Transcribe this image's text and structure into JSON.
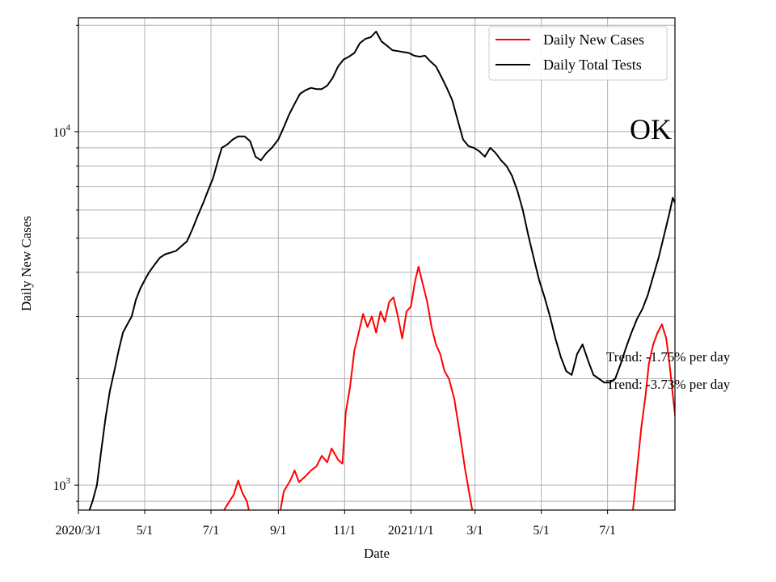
{
  "chart_data": {
    "type": "line",
    "title": "",
    "xlabel": "Date",
    "ylabel": "Daily New Cases",
    "x_scale": "time",
    "y_scale": "log",
    "xlim": [
      "2020-03-01",
      "2021-09-01"
    ],
    "ylim": [
      850,
      21000
    ],
    "grid": true,
    "legend_position": "top-right",
    "x_ticks": [
      {
        "date": "2020-03-01",
        "label": "2020/3/1"
      },
      {
        "date": "2020-05-01",
        "label": "5/1"
      },
      {
        "date": "2020-07-01",
        "label": "7/1"
      },
      {
        "date": "2020-09-01",
        "label": "9/1"
      },
      {
        "date": "2020-11-01",
        "label": "11/1"
      },
      {
        "date": "2021-01-01",
        "label": "2021/1/1"
      },
      {
        "date": "2021-03-01",
        "label": "3/1"
      },
      {
        "date": "2021-05-01",
        "label": "5/1"
      },
      {
        "date": "2021-07-01",
        "label": "7/1"
      }
    ],
    "y_ticks": [
      {
        "value": 1000,
        "label_base": "10",
        "label_exp": "3"
      },
      {
        "value": 10000,
        "label_base": "10",
        "label_exp": "4"
      }
    ],
    "annotations": {
      "state": "OK",
      "trend_cases": "Trend: -1.75% per day",
      "trend_tests": "Trend: -3.73% per day"
    },
    "colors": {
      "cases": "#ff0000",
      "tests": "#000000",
      "grid": "#b0b0b0"
    },
    "series": [
      {
        "name": "Daily New Cases",
        "color": "#ff0000",
        "points": [
          [
            "2020-07-08",
            800
          ],
          [
            "2020-07-15",
            870
          ],
          [
            "2020-07-22",
            940
          ],
          [
            "2020-07-26",
            1030
          ],
          [
            "2020-07-30",
            950
          ],
          [
            "2020-08-03",
            900
          ],
          [
            "2020-08-06",
            820
          ],
          [
            "2020-09-02",
            820
          ],
          [
            "2020-09-06",
            960
          ],
          [
            "2020-09-12",
            1030
          ],
          [
            "2020-09-16",
            1100
          ],
          [
            "2020-09-20",
            1020
          ],
          [
            "2020-09-26",
            1060
          ],
          [
            "2020-10-01",
            1100
          ],
          [
            "2020-10-06",
            1130
          ],
          [
            "2020-10-11",
            1210
          ],
          [
            "2020-10-16",
            1160
          ],
          [
            "2020-10-20",
            1270
          ],
          [
            "2020-10-26",
            1180
          ],
          [
            "2020-10-30",
            1150
          ],
          [
            "2020-11-02",
            1600
          ],
          [
            "2020-11-06",
            1900
          ],
          [
            "2020-11-10",
            2400
          ],
          [
            "2020-11-14",
            2700
          ],
          [
            "2020-11-18",
            3050
          ],
          [
            "2020-11-22",
            2800
          ],
          [
            "2020-11-26",
            3000
          ],
          [
            "2020-11-30",
            2700
          ],
          [
            "2020-12-04",
            3100
          ],
          [
            "2020-12-08",
            2900
          ],
          [
            "2020-12-12",
            3300
          ],
          [
            "2020-12-16",
            3400
          ],
          [
            "2020-12-20",
            3000
          ],
          [
            "2020-12-24",
            2600
          ],
          [
            "2020-12-28",
            3100
          ],
          [
            "2021-01-01",
            3200
          ],
          [
            "2021-01-05",
            3800
          ],
          [
            "2021-01-08",
            4150
          ],
          [
            "2021-01-12",
            3700
          ],
          [
            "2021-01-16",
            3300
          ],
          [
            "2021-01-20",
            2800
          ],
          [
            "2021-01-24",
            2500
          ],
          [
            "2021-01-28",
            2350
          ],
          [
            "2021-02-01",
            2100
          ],
          [
            "2021-02-05",
            2000
          ],
          [
            "2021-02-10",
            1750
          ],
          [
            "2021-02-15",
            1400
          ],
          [
            "2021-02-20",
            1100
          ],
          [
            "2021-02-25",
            900
          ],
          [
            "2021-02-27",
            830
          ],
          [
            "2021-07-24",
            830
          ],
          [
            "2021-07-28",
            1100
          ],
          [
            "2021-08-01",
            1450
          ],
          [
            "2021-08-05",
            1800
          ],
          [
            "2021-08-08",
            2200
          ],
          [
            "2021-08-12",
            2500
          ],
          [
            "2021-08-16",
            2700
          ],
          [
            "2021-08-20",
            2850
          ],
          [
            "2021-08-24",
            2600
          ],
          [
            "2021-08-27",
            2200
          ],
          [
            "2021-08-30",
            1800
          ],
          [
            "2021-09-02",
            1500
          ],
          [
            "2021-09-05",
            1200
          ],
          [
            "2021-09-08",
            1000
          ]
        ]
      },
      {
        "name": "Daily Total Tests",
        "color": "#000000",
        "points": [
          [
            "2020-03-01",
            760
          ],
          [
            "2020-03-10",
            830
          ],
          [
            "2020-03-14",
            900
          ],
          [
            "2020-03-18",
            1000
          ],
          [
            "2020-03-22",
            1250
          ],
          [
            "2020-03-26",
            1550
          ],
          [
            "2020-03-30",
            1850
          ],
          [
            "2020-04-03",
            2100
          ],
          [
            "2020-04-07",
            2400
          ],
          [
            "2020-04-11",
            2700
          ],
          [
            "2020-04-15",
            2850
          ],
          [
            "2020-04-19",
            3000
          ],
          [
            "2020-04-23",
            3350
          ],
          [
            "2020-04-27",
            3600
          ],
          [
            "2020-05-01",
            3800
          ],
          [
            "2020-05-05",
            4000
          ],
          [
            "2020-05-10",
            4200
          ],
          [
            "2020-05-15",
            4400
          ],
          [
            "2020-05-20",
            4500
          ],
          [
            "2020-05-25",
            4550
          ],
          [
            "2020-05-30",
            4600
          ],
          [
            "2020-06-04",
            4750
          ],
          [
            "2020-06-09",
            4900
          ],
          [
            "2020-06-14",
            5300
          ],
          [
            "2020-06-19",
            5800
          ],
          [
            "2020-06-24",
            6300
          ],
          [
            "2020-06-29",
            6900
          ],
          [
            "2020-07-03",
            7400
          ],
          [
            "2020-07-07",
            8200
          ],
          [
            "2020-07-11",
            9000
          ],
          [
            "2020-07-16",
            9200
          ],
          [
            "2020-07-21",
            9500
          ],
          [
            "2020-07-26",
            9700
          ],
          [
            "2020-08-01",
            9700
          ],
          [
            "2020-08-06",
            9400
          ],
          [
            "2020-08-11",
            8500
          ],
          [
            "2020-08-16",
            8300
          ],
          [
            "2020-08-21",
            8700
          ],
          [
            "2020-08-26",
            9000
          ],
          [
            "2020-09-01",
            9500
          ],
          [
            "2020-09-06",
            10300
          ],
          [
            "2020-09-11",
            11200
          ],
          [
            "2020-09-16",
            12000
          ],
          [
            "2020-09-21",
            12800
          ],
          [
            "2020-09-26",
            13100
          ],
          [
            "2020-10-01",
            13300
          ],
          [
            "2020-10-06",
            13200
          ],
          [
            "2020-10-11",
            13200
          ],
          [
            "2020-10-16",
            13500
          ],
          [
            "2020-10-21",
            14200
          ],
          [
            "2020-10-26",
            15300
          ],
          [
            "2020-10-31",
            16000
          ],
          [
            "2020-11-05",
            16300
          ],
          [
            "2020-11-10",
            16700
          ],
          [
            "2020-11-15",
            17800
          ],
          [
            "2020-11-20",
            18300
          ],
          [
            "2020-11-25",
            18500
          ],
          [
            "2020-11-30",
            19200
          ],
          [
            "2020-12-05",
            18000
          ],
          [
            "2020-12-10",
            17500
          ],
          [
            "2020-12-15",
            17000
          ],
          [
            "2020-12-20",
            16900
          ],
          [
            "2020-12-25",
            16800
          ],
          [
            "2020-12-30",
            16700
          ],
          [
            "2021-01-04",
            16400
          ],
          [
            "2021-01-09",
            16300
          ],
          [
            "2021-01-14",
            16400
          ],
          [
            "2021-01-19",
            15800
          ],
          [
            "2021-01-24",
            15300
          ],
          [
            "2021-01-29",
            14300
          ],
          [
            "2021-02-03",
            13300
          ],
          [
            "2021-02-08",
            12300
          ],
          [
            "2021-02-13",
            10800
          ],
          [
            "2021-02-18",
            9500
          ],
          [
            "2021-02-23",
            9100
          ],
          [
            "2021-02-28",
            9000
          ],
          [
            "2021-03-05",
            8800
          ],
          [
            "2021-03-10",
            8500
          ],
          [
            "2021-03-15",
            9000
          ],
          [
            "2021-03-20",
            8700
          ],
          [
            "2021-03-25",
            8300
          ],
          [
            "2021-03-30",
            8000
          ],
          [
            "2021-04-04",
            7500
          ],
          [
            "2021-04-09",
            6800
          ],
          [
            "2021-04-14",
            6000
          ],
          [
            "2021-04-19",
            5100
          ],
          [
            "2021-04-24",
            4400
          ],
          [
            "2021-04-29",
            3800
          ],
          [
            "2021-05-04",
            3400
          ],
          [
            "2021-05-09",
            3000
          ],
          [
            "2021-05-14",
            2600
          ],
          [
            "2021-05-19",
            2300
          ],
          [
            "2021-05-24",
            2100
          ],
          [
            "2021-05-29",
            2050
          ],
          [
            "2021-06-03",
            2350
          ],
          [
            "2021-06-08",
            2500
          ],
          [
            "2021-06-13",
            2250
          ],
          [
            "2021-06-18",
            2050
          ],
          [
            "2021-06-23",
            2000
          ],
          [
            "2021-06-28",
            1950
          ],
          [
            "2021-07-03",
            1950
          ],
          [
            "2021-07-08",
            2000
          ],
          [
            "2021-07-13",
            2200
          ],
          [
            "2021-07-18",
            2450
          ],
          [
            "2021-07-23",
            2700
          ],
          [
            "2021-07-28",
            2950
          ],
          [
            "2021-08-02",
            3150
          ],
          [
            "2021-08-07",
            3450
          ],
          [
            "2021-08-12",
            3900
          ],
          [
            "2021-08-17",
            4400
          ],
          [
            "2021-08-22",
            5100
          ],
          [
            "2021-08-27",
            5900
          ],
          [
            "2021-08-30",
            6500
          ],
          [
            "2021-09-02",
            6200
          ],
          [
            "2021-09-05",
            5700
          ],
          [
            "2021-09-08",
            5000
          ]
        ]
      }
    ]
  }
}
